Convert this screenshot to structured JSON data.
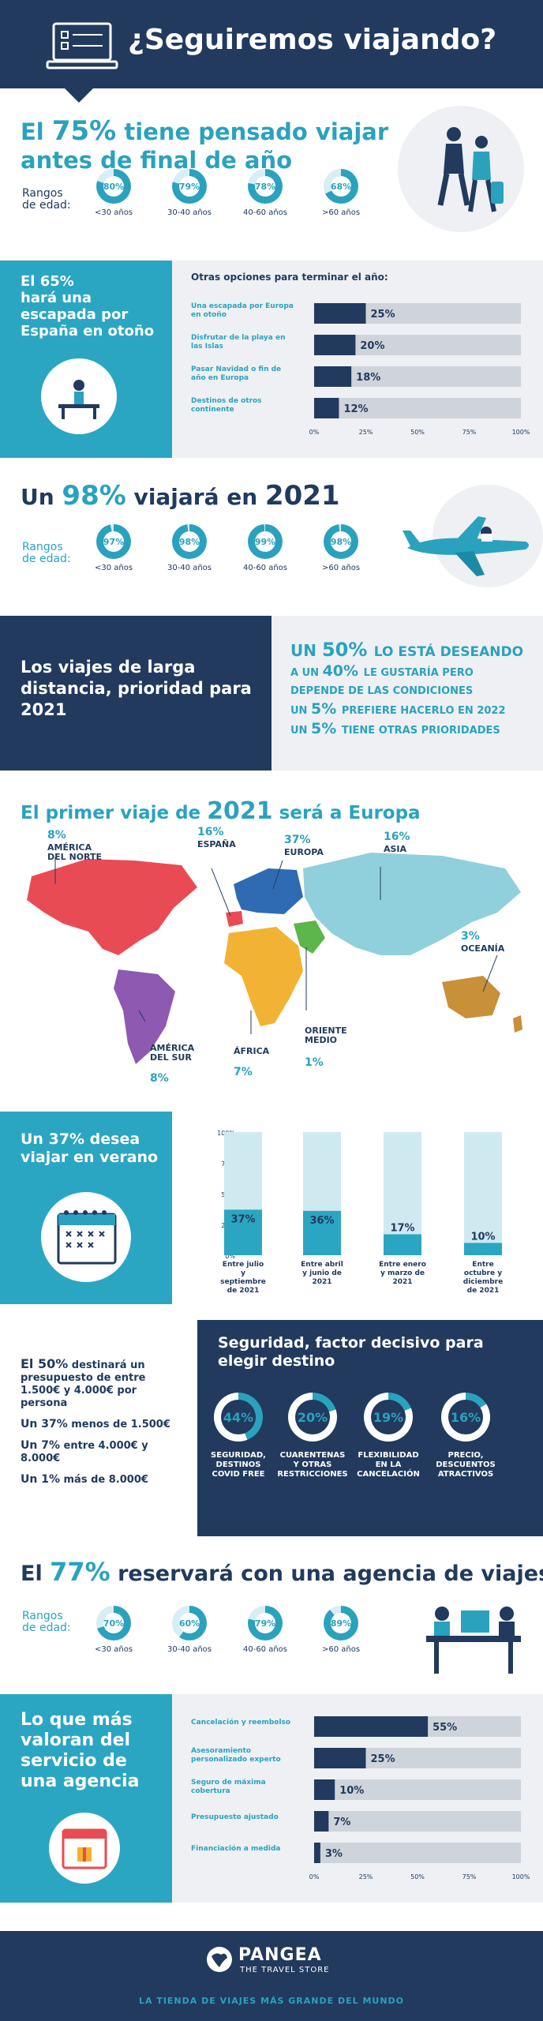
{
  "header": {
    "title": "¿Seguiremos viajando?"
  },
  "s1": {
    "title_a": "El ",
    "title_pct": "75%",
    "title_b": " tiene pensado viajar",
    "title_line2": "antes de final de año",
    "age_label_1": "Rangos",
    "age_label_2": "de edad:",
    "rings": [
      {
        "value": 80,
        "label": "80%",
        "range": "<30 años"
      },
      {
        "value": 79,
        "label": "79%",
        "range": "30-40 años"
      },
      {
        "value": 78,
        "label": "78%",
        "range": "40-60 años"
      },
      {
        "value": 68,
        "label": "68%",
        "range": ">60 años"
      }
    ]
  },
  "s2": {
    "left_lines": [
      "El 65%",
      "hará una",
      "escapada por",
      "España en otoño"
    ],
    "chart_title": "Otras opciones para terminar el año:",
    "ticks": [
      "0%",
      "25%",
      "50%",
      "75%",
      "100%"
    ]
  },
  "s3": {
    "title_a": "Un ",
    "title_pct": "98%",
    "title_b": " viajará en ",
    "title_year": "2021",
    "age_label_1": "Rangos",
    "age_label_2": "de edad:",
    "rings": [
      {
        "value": 97,
        "label": "97%",
        "range": "<30 años"
      },
      {
        "value": 98,
        "label": "98%",
        "range": "30-40 años"
      },
      {
        "value": 99,
        "label": "99%",
        "range": "40-60 años"
      },
      {
        "value": 98,
        "label": "98%",
        "range": ">60 años"
      }
    ]
  },
  "s4": {
    "left_lines": [
      "Los viajes de larga",
      "distancia, prioridad para",
      "2021"
    ],
    "stats": [
      {
        "pct": "50%",
        "text": "LO ESTÁ DESEANDO",
        "pre": "UN"
      },
      {
        "pct": "40%",
        "text": "LE GUSTARÍA PERO",
        "pre": "A UN"
      },
      {
        "pct": "",
        "text": "DEPENDE DE LAS CONDICIONES",
        "pre": ""
      },
      {
        "pct": "5%",
        "text": "PREFIERE HACERLO EN 2022",
        "pre": "UN"
      },
      {
        "pct": "5%",
        "text": "TIENE OTRAS PRIORIDADES",
        "pre": "UN"
      }
    ]
  },
  "s5": {
    "title_a": "El primer viaje de ",
    "title_year": "2021",
    "title_b": " será a Europa",
    "regions": [
      {
        "pct": "8%",
        "name_1": "AMÉRICA",
        "name_2": "DEL NORTE",
        "color": "#e94b55"
      },
      {
        "pct": "16%",
        "name_1": "ESPAÑA",
        "name_2": "",
        "color": "#e94b55"
      },
      {
        "pct": "37%",
        "name_1": "EUROPA",
        "name_2": "",
        "color": "#2f6bb3"
      },
      {
        "pct": "16%",
        "name_1": "ASIA",
        "name_2": "",
        "color": "#8fd0dc"
      },
      {
        "pct": "3%",
        "name_1": "OCEANÍA",
        "name_2": "",
        "color": "#c9903a"
      },
      {
        "pct": "8%",
        "name_1": "AMÉRICA",
        "name_2": "DEL SUR",
        "color": "#8e59b0"
      },
      {
        "pct": "7%",
        "name_1": "ÁFRICA",
        "name_2": "",
        "color": "#f2b233"
      },
      {
        "pct": "1%",
        "name_1": "ORIENTE",
        "name_2": "MEDIO",
        "color": "#5cb64a"
      }
    ]
  },
  "s6": {
    "left_lines": [
      "Un 37% desea",
      "viajar en verano"
    ],
    "yticks": [
      "100%",
      "75%",
      "50%",
      "25%",
      "0%"
    ]
  },
  "s7": {
    "left": [
      {
        "big": "El 50%",
        "text": " destinará un presupuesto de entre 1.500€ y 4.000€ por persona"
      },
      {
        "big": "Un 37%",
        "text": " menos de 1.500€"
      },
      {
        "big": "Un 7%",
        "text": " entre 4.000€ y 8.000€"
      },
      {
        "big": "Un 1%",
        "text": " más de 8.000€"
      }
    ],
    "right_title_1": "Seguridad, factor decisivo para",
    "right_title_2": "elegir destino",
    "rings": [
      {
        "value": 44,
        "label": "44%",
        "l1": "SEGURIDAD,",
        "l2": "DESTINOS",
        "l3": "COVID FREE"
      },
      {
        "value": 20,
        "label": "20%",
        "l1": "CUARENTENAS",
        "l2": "Y OTRAS",
        "l3": "RESTRICCIONES"
      },
      {
        "value": 19,
        "label": "19%",
        "l1": "FLEXIBILIDAD",
        "l2": "EN LA",
        "l3": "CANCELACIÓN"
      },
      {
        "value": 16,
        "label": "16%",
        "l1": "PRECIO,",
        "l2": "DESCUENTOS",
        "l3": "ATRACTIVOS"
      }
    ]
  },
  "s8": {
    "title_a": "El ",
    "title_pct": "77%",
    "title_b": " reservará con una agencia de viajes",
    "age_label_1": "Rangos",
    "age_label_2": "de edad:",
    "rings": [
      {
        "value": 70,
        "label": "70%",
        "range": "<30 años"
      },
      {
        "value": 60,
        "label": "60%",
        "range": "30-40 años"
      },
      {
        "value": 79,
        "label": "79%",
        "range": "40-60 años"
      },
      {
        "value": 89,
        "label": "89%",
        "range": ">60 años"
      }
    ]
  },
  "s9": {
    "left_lines": [
      "Lo que más",
      "valoran del",
      "servicio de",
      "una agencia"
    ],
    "ticks": [
      "0%",
      "25%",
      "50%",
      "75%",
      "100%"
    ]
  },
  "footer": {
    "brand": "PANGEA",
    "sub": "THE TRAVEL STORE",
    "tagline": "LA TIENDA DE VIAJES MÁS GRANDE DEL MUNDO"
  },
  "chart_data": [
    {
      "type": "bar",
      "title": "Otras opciones para terminar el año:",
      "categories": [
        "Una escapada por Europa en otoño",
        "Disfrutar de la playa en las Islas",
        "Pasar Navidad o fin de año en Europa",
        "Destinos de otros continente"
      ],
      "values": [
        25,
        20,
        18,
        12
      ],
      "labels": [
        "25%",
        "20%",
        "18%",
        "12%"
      ],
      "xlim": [
        0,
        100
      ]
    },
    {
      "type": "bar",
      "categories": [
        "Entre julio y septiembre de 2021",
        "Entre abril y junio de 2021",
        "Entre enero y marzo de 2021",
        "Entre octubre y diciembre de 2021"
      ],
      "values": [
        37,
        36,
        17,
        10
      ],
      "labels": [
        "37%",
        "36%",
        "17%",
        "10%"
      ],
      "ylim": [
        0,
        100
      ]
    },
    {
      "type": "bar",
      "title": "Lo que más valoran del servicio de una agencia",
      "categories": [
        "Cancelación y reembolso",
        "Asesoramiento personalizado experto",
        "Seguro de máxima cobertura",
        "Presupuesto ajustado",
        "Financiación a medida"
      ],
      "values": [
        55,
        25,
        10,
        7,
        3
      ],
      "labels": [
        "55%",
        "25%",
        "10%",
        "7%",
        "3%"
      ],
      "xlim": [
        0,
        100
      ]
    }
  ]
}
